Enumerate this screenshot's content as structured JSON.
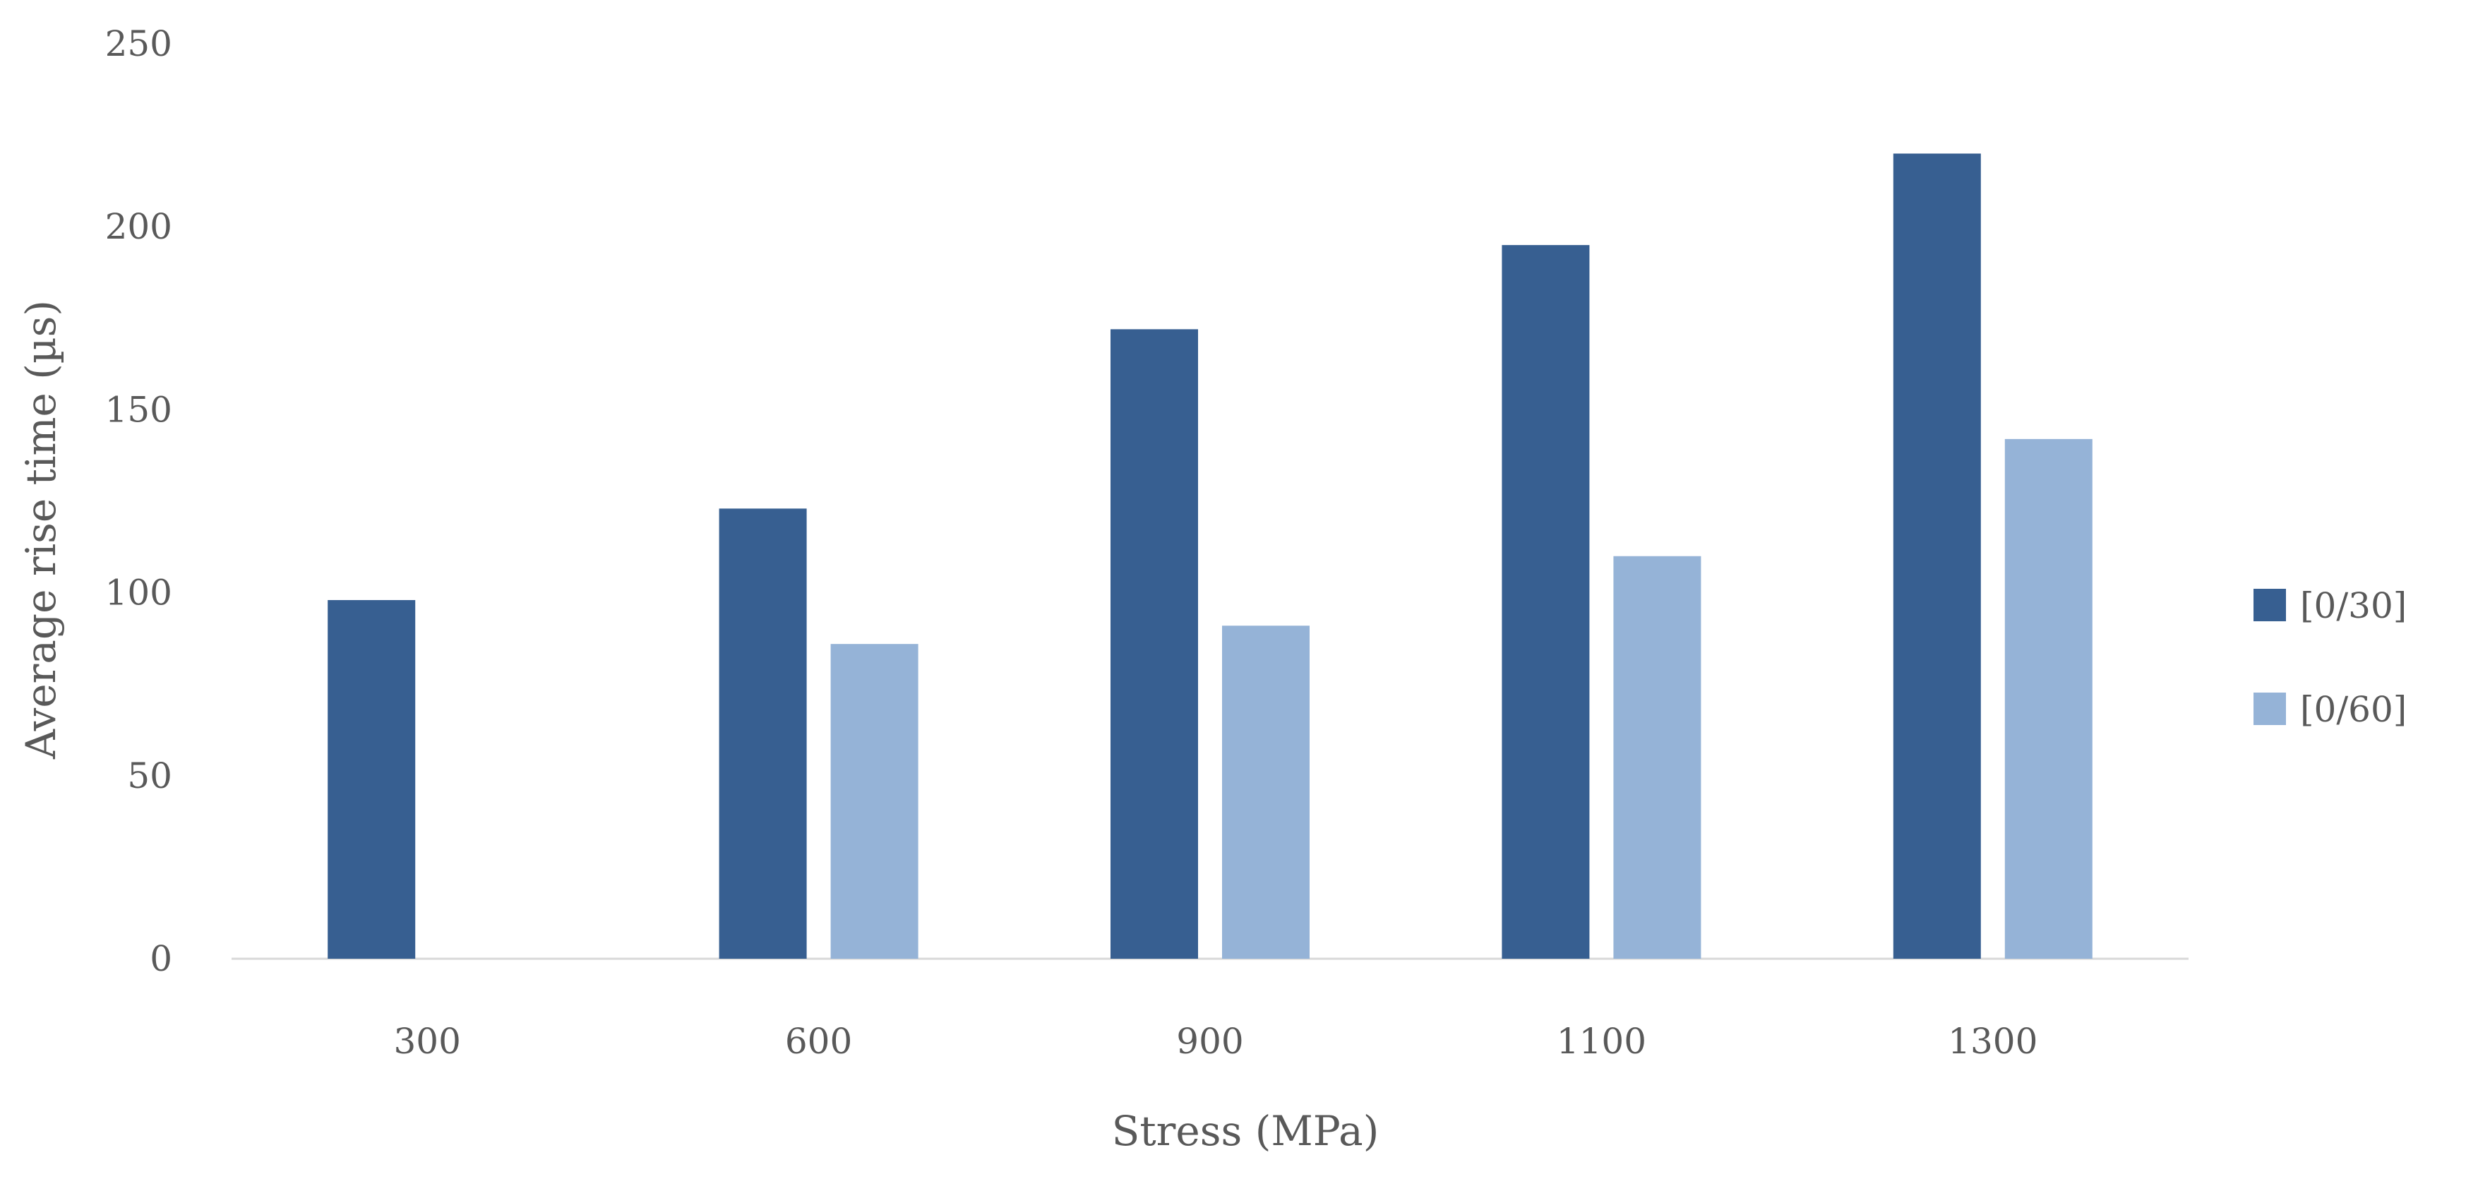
{
  "chart_data": {
    "type": "bar",
    "title": "",
    "xlabel": "Stress (MPa)",
    "ylabel": "Average rise time (µs)",
    "categories": [
      "300",
      "600",
      "900",
      "1100",
      "1300"
    ],
    "series": [
      {
        "name": "[0/30]",
        "color": "#375F91",
        "values": [
          98,
          123,
          172,
          195,
          220
        ]
      },
      {
        "name": "[0/60]",
        "color": "#95B3D7",
        "values": [
          null,
          86,
          91,
          110,
          142
        ]
      }
    ],
    "ylim": [
      0,
      250
    ],
    "yticks": [
      0,
      50,
      100,
      150,
      200,
      250
    ],
    "grid": false,
    "legend_position": "right"
  }
}
